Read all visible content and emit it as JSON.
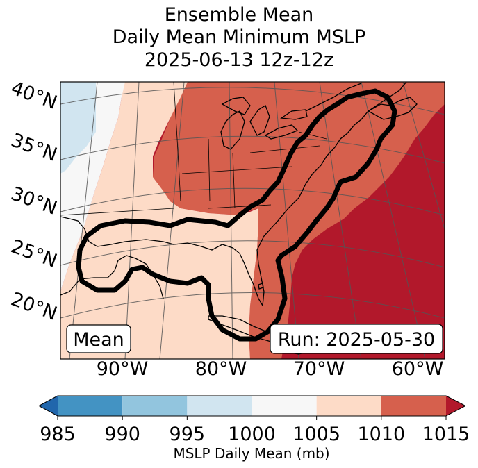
{
  "title": {
    "line1": "Ensemble Mean",
    "line2": "Daily Mean Minimum MSLP",
    "line3": "2025-06-13 12z-12z"
  },
  "map": {
    "lat_labels": [
      "40°N",
      "35°N",
      "30°N",
      "25°N",
      "20°N"
    ],
    "lon_labels": [
      "90°W",
      "80°W",
      "70°W",
      "60°W"
    ],
    "left_box": "Mean",
    "right_box": "Run: 2025-05-30",
    "ensemble_outline_icon": "closed-contour-outline"
  },
  "colorbar": {
    "ticks": [
      "985",
      "990",
      "995",
      "1000",
      "1005",
      "1010",
      "1015"
    ],
    "label": "MSLP Daily Mean (mb)",
    "bins": [
      {
        "from": 985,
        "to": 990,
        "color": "#4393c3"
      },
      {
        "from": 990,
        "to": 995,
        "color": "#92c5de"
      },
      {
        "from": 995,
        "to": 1000,
        "color": "#d1e5f0"
      },
      {
        "from": 1000,
        "to": 1005,
        "color": "#f7f7f7"
      },
      {
        "from": 1005,
        "to": 1010,
        "color": "#fddbc7"
      },
      {
        "from": 1010,
        "to": 1015,
        "color": "#d6604d"
      }
    ],
    "under_color": "#2166ac",
    "over_color": "#b2182b"
  }
}
